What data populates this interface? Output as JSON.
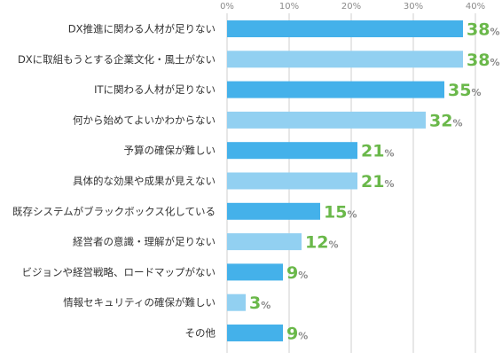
{
  "chart_data": {
    "type": "bar",
    "orientation": "horizontal",
    "categories": [
      "DX推進に関わる人材が足りない",
      "DXに取組もうとする企業文化・風土がない",
      "ITに関わる人材が足りない",
      "何から始めてよいかわからない",
      "予算の確保が難しい",
      "具体的な効果や成果が見えない",
      "既存システムがブラックボックス化している",
      "経営者の意識・理解が足りない",
      "ビジョンや経営戦略、ロードマップがない",
      "情報セキュリティの確保が難しい",
      "その他"
    ],
    "values": [
      38,
      38,
      35,
      32,
      21,
      21,
      15,
      12,
      9,
      3,
      9
    ],
    "value_suffix": "%",
    "xlim": [
      0,
      45
    ],
    "ticks": [
      "0%",
      "10%",
      "20%",
      "30%",
      "40%"
    ],
    "tick_values": [
      0,
      10,
      20,
      30,
      40
    ],
    "grid": true,
    "bar_colors": [
      "#44b1ea",
      "#92d0f1"
    ],
    "value_label_color": "#6ab84a",
    "grid_color": "#cfcfcf"
  }
}
